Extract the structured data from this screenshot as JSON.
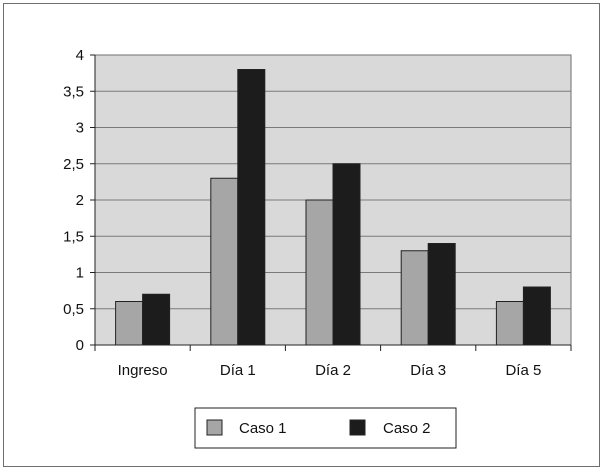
{
  "chart_data": {
    "type": "bar",
    "categories": [
      "Ingreso",
      "Día 1",
      "Día 2",
      "Día 3",
      "Día 5"
    ],
    "series": [
      {
        "name": "Caso 1",
        "values": [
          0.6,
          2.3,
          2.0,
          1.3,
          0.6
        ],
        "color": "#a6a6a6"
      },
      {
        "name": "Caso 2",
        "values": [
          0.7,
          3.8,
          2.5,
          1.4,
          0.8
        ],
        "color": "#1c1c1c"
      }
    ],
    "yticks": [
      "0",
      "0,5",
      "1",
      "1,5",
      "2",
      "2,5",
      "3",
      "3,5",
      "4"
    ],
    "ylim": [
      0,
      4
    ],
    "grid": true,
    "plot_background": "#d9d9d9",
    "legend_position": "bottom",
    "title": "",
    "xlabel": "",
    "ylabel": ""
  }
}
